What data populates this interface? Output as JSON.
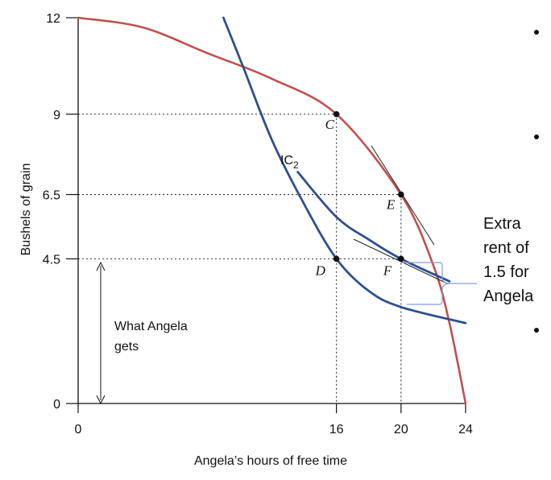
{
  "chart_data": {
    "type": "line",
    "xlabel": "Angela’s hours of free time",
    "ylabel": "Bushels of grain",
    "xlim": [
      0,
      24
    ],
    "ylim": [
      0,
      12
    ],
    "x_ticks": [
      {
        "value": 0,
        "label": "0"
      },
      {
        "value": 16,
        "label": "16"
      },
      {
        "value": 20,
        "label": "20"
      },
      {
        "value": 24,
        "label": "24"
      }
    ],
    "y_ticks": [
      {
        "value": 0,
        "label": "0"
      },
      {
        "value": 4.5,
        "label": "4.5"
      },
      {
        "value": 6.5,
        "label": "6.5"
      },
      {
        "value": 9,
        "label": "9"
      },
      {
        "value": 12,
        "label": "12"
      }
    ],
    "series": [
      {
        "name": "",
        "color": "#c0504d",
        "x": [
          0,
          4,
          8,
          12,
          16,
          20,
          22,
          23,
          24
        ],
        "y": [
          12,
          11.7,
          10.9,
          10.1,
          9,
          6.5,
          4.3,
          2.5,
          0
        ]
      },
      {
        "name": "",
        "color": "#2f4f8f",
        "x": [
          9,
          10.2,
          12,
          14,
          16,
          18,
          20,
          24
        ],
        "y": [
          12,
          10.5,
          8.2,
          6.2,
          4.5,
          3.5,
          3.0,
          2.5
        ]
      },
      {
        "name": "IC2",
        "color": "#2f4f8f",
        "x": [
          13.6,
          16,
          18,
          20,
          23
        ],
        "y": [
          7.2,
          5.8,
          5.1,
          4.5,
          3.8
        ]
      }
    ],
    "points": [
      {
        "label": "C",
        "x": 16,
        "y": 9
      },
      {
        "label": "E",
        "x": 20,
        "y": 6.5
      },
      {
        "label": "D",
        "x": 16,
        "y": 4.5
      },
      {
        "label": "F",
        "x": 20,
        "y": 4.5
      }
    ],
    "annotations": {
      "ic2_label": "IC",
      "ic2_sub": "2",
      "what_angela_line1": "What Angela",
      "what_angela_line2": "gets",
      "extra_rent": [
        "Extra",
        "rent of",
        "1.5 for",
        "Angela"
      ]
    },
    "colors": {
      "frontier": "#c0504d",
      "indifference": "#2f4f8f",
      "brace": "#7f9fd6"
    }
  }
}
